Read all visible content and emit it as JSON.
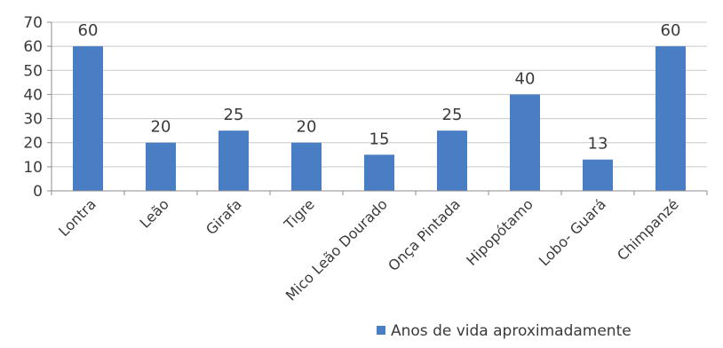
{
  "chart_data": {
    "type": "bar",
    "categories": [
      "Lontra",
      "Leão",
      "Girafa",
      "Tigre",
      "Mico Leão Dourado",
      "Onça Pintada",
      "Hipopótamo",
      "Lobo- Guará",
      "Chimpanzé"
    ],
    "series": [
      {
        "name": "Anos de vida aproximadamente",
        "values": [
          60,
          20,
          25,
          20,
          15,
          25,
          40,
          13,
          60
        ]
      }
    ],
    "title": "",
    "xlabel": "",
    "ylabel": "",
    "ylim": [
      0,
      70
    ],
    "yticks": [
      0,
      10,
      20,
      30,
      40,
      50,
      60,
      70
    ],
    "grid": true,
    "data_labels": true,
    "legend_position": "bottom-right",
    "bar_color": "#4a7ec4",
    "grid_color": "#c8c8c8"
  }
}
